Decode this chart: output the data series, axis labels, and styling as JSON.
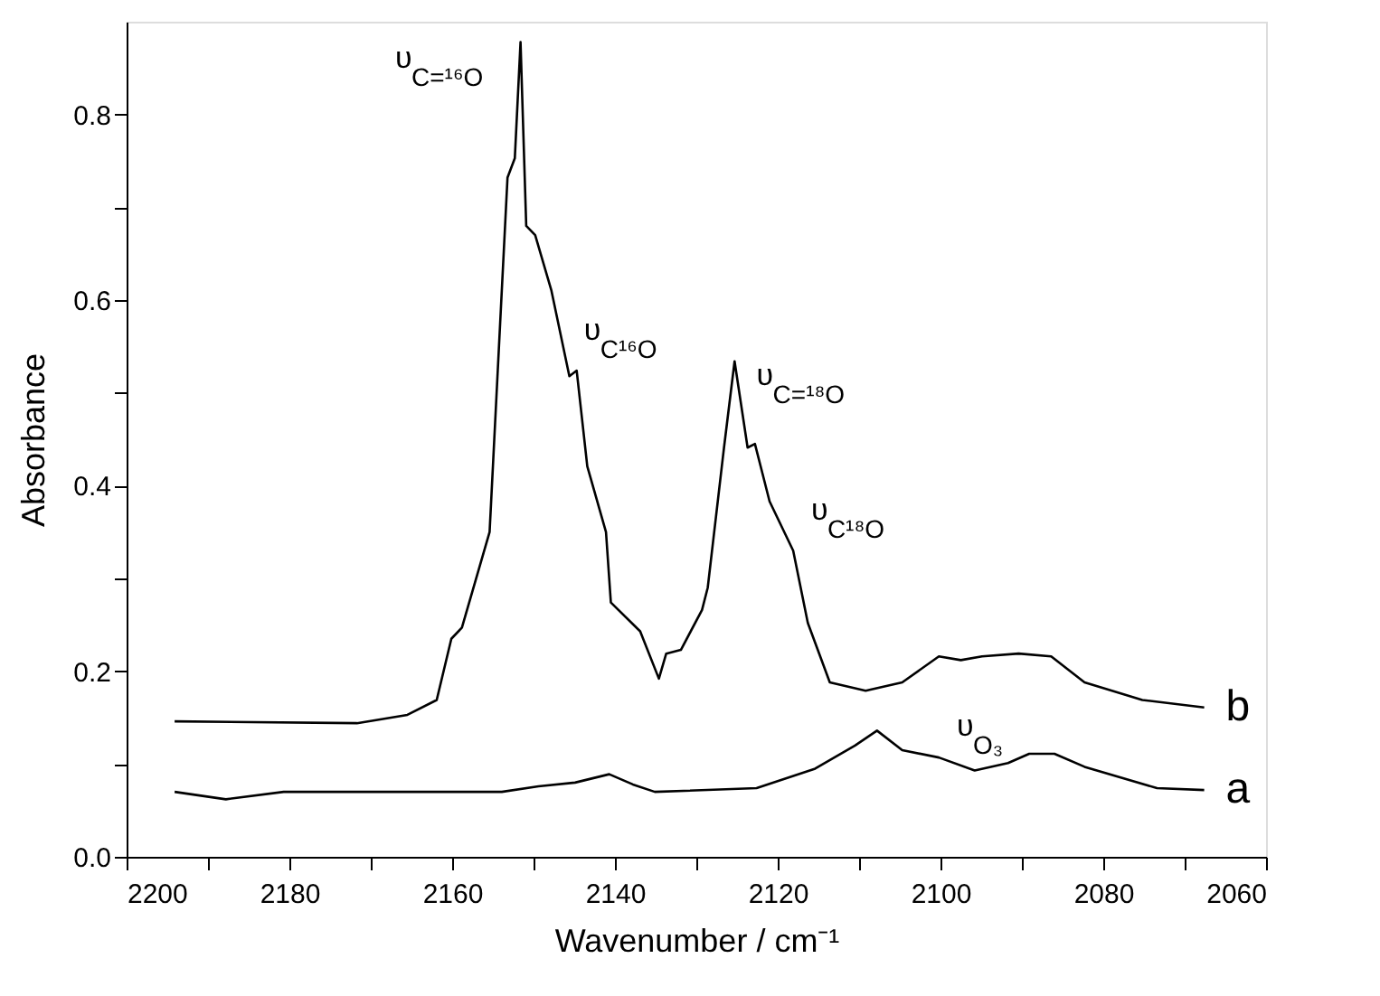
{
  "chart_data": {
    "type": "line",
    "xlabel": "Wavenumber / cm⁻¹",
    "ylabel": "Absorbance",
    "xlim": [
      2200,
      2060
    ],
    "ylim": [
      0,
      0.9
    ],
    "xticks": [
      2200,
      {
        "value": 2190,
        "label": null
      },
      2180,
      {
        "value": 2170,
        "label": null
      },
      2160,
      {
        "value": 2150,
        "label": null
      },
      2140,
      {
        "value": 2130,
        "label": null
      },
      2120,
      {
        "value": 2110,
        "label": null
      },
      2100,
      {
        "value": 2090,
        "label": null
      },
      2080,
      {
        "value": 2070,
        "label": null
      },
      2060
    ],
    "yticks": [
      {
        "value": 0,
        "label": "0.0"
      },
      {
        "value": 0.1,
        "label": null
      },
      0.2,
      {
        "value": 0.3,
        "label": null
      },
      0.4,
      {
        "value": 0.5,
        "label": null
      },
      0.6,
      {
        "value": 0.7,
        "label": null
      },
      0.8
    ],
    "grid": false,
    "line_style": "solid",
    "marker": "none",
    "series": [
      {
        "name": "b",
        "color": "#000000",
        "x": [
          2194.1,
          2171.7,
          2165.5,
          2161.9,
          2160.1,
          2158.8,
          2155.4,
          2153.2,
          2152.3,
          2151.6,
          2150.9,
          2149.8,
          2147.8,
          2145.6,
          2144.7,
          2143.4,
          2141.1,
          2140.5,
          2136.9,
          2134.6,
          2133.7,
          2131.9,
          2129.3,
          2128.6,
          2126.6,
          2125.3,
          2123.7,
          2122.8,
          2121.0,
          2118.1,
          2116.3,
          2113.6,
          2109.2,
          2104.7,
          2100.2,
          2097.5,
          2094.9,
          2090.4,
          2086.4,
          2082.3,
          2075.2,
          2067.6
        ],
        "values": [
          0.146,
          0.144,
          0.153,
          0.169,
          0.235,
          0.247,
          0.35,
          0.732,
          0.753,
          0.878,
          0.68,
          0.67,
          0.61,
          0.518,
          0.524,
          0.421,
          0.35,
          0.274,
          0.243,
          0.192,
          0.219,
          0.223,
          0.266,
          0.29,
          0.441,
          0.534,
          0.441,
          0.445,
          0.383,
          0.33,
          0.252,
          0.188,
          0.179,
          0.188,
          0.216,
          0.212,
          0.216,
          0.219,
          0.216,
          0.188,
          0.169,
          0.161
        ]
      },
      {
        "name": "a",
        "color": "#000000",
        "x": [
          2194.1,
          2187.8,
          2180.7,
          2153.9,
          2149.4,
          2144.9,
          2140.7,
          2137.8,
          2135.1,
          2122.6,
          2115.4,
          2110.5,
          2107.8,
          2104.7,
          2100.2,
          2095.8,
          2091.7,
          2089.1,
          2086.0,
          2082.3,
          2073.4,
          2067.6
        ],
        "values": [
          0.07,
          0.062,
          0.07,
          0.07,
          0.076,
          0.08,
          0.089,
          0.078,
          0.07,
          0.074,
          0.095,
          0.12,
          0.136,
          0.115,
          0.107,
          0.093,
          0.101,
          0.111,
          0.111,
          0.097,
          0.074,
          0.072
        ]
      }
    ],
    "annotations": [
      "υ$_{C=¹⁶O}$",
      "υ$_{C¹⁶O}$",
      "υ$_{C=¹⁸O}$",
      "υ$_{C¹⁸O}$",
      "υ$_{O₃}$"
    ]
  }
}
